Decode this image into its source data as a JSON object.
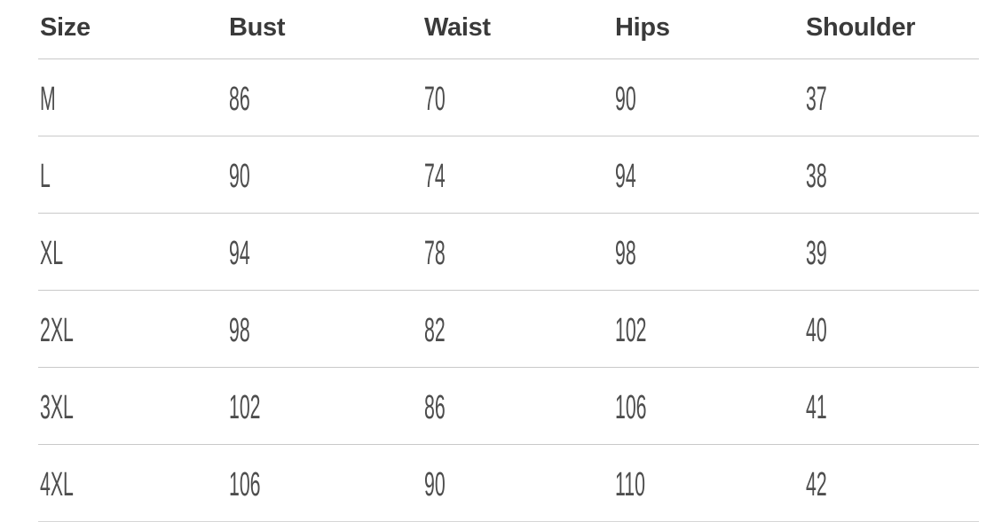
{
  "chart_data": {
    "type": "table",
    "columns": [
      "Size",
      "Bust",
      "Waist",
      "Hips",
      "Shoulder"
    ],
    "rows": [
      [
        "M",
        "86",
        "70",
        "90",
        "37"
      ],
      [
        "L",
        "90",
        "74",
        "94",
        "38"
      ],
      [
        "XL",
        "94",
        "78",
        "98",
        "39"
      ],
      [
        "2XL",
        "98",
        "82",
        "102",
        "40"
      ],
      [
        "3XL",
        "102",
        "86",
        "106",
        "41"
      ],
      [
        "4XL",
        "106",
        "90",
        "110",
        "42"
      ]
    ],
    "layout": {
      "grid": "horizontal-dividers-only",
      "header_align": "left",
      "cell_align": "left"
    }
  },
  "colors": {
    "background": "#ffffff",
    "header_text": "#3a3a3a",
    "cell_text": "#4d4d4d",
    "divider": "#c9c9c9"
  }
}
